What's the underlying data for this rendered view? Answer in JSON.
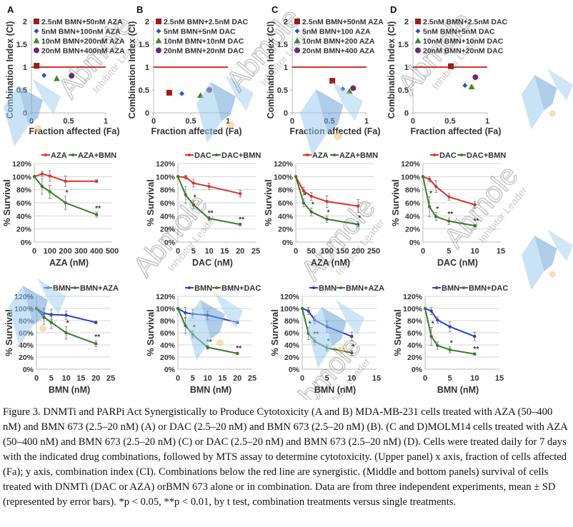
{
  "chart_data": [
    {
      "panel": "A",
      "row": "top",
      "type": "scatter",
      "title": "",
      "xlabel": "Fraction affected (Fa)",
      "ylabel": "Combination Index (CI)",
      "xlim": [
        0,
        1
      ],
      "ylim": [
        0,
        2
      ],
      "xticks": [
        "0",
        "0.5",
        "1"
      ],
      "yticks": [
        "0",
        "0.5",
        "1",
        "1.5",
        "2"
      ],
      "reference_line": {
        "y": 1,
        "color": "#d9342b"
      },
      "legend_position": "top",
      "series": [
        {
          "name": "2.5nM BMN+50nM AZA",
          "marker": "square",
          "color": "#9b1b1b",
          "x": 0.07,
          "y": 1.03
        },
        {
          "name": "5nM BMN+100nM AZA",
          "marker": "diamond",
          "color": "#2a4fd0",
          "x": 0.17,
          "y": 0.82
        },
        {
          "name": "10nM BMN+200nM AZA",
          "marker": "triangle",
          "color": "#3a8a2a",
          "x": 0.34,
          "y": 0.75
        },
        {
          "name": "20nM BMN+400nM AZA",
          "marker": "circle",
          "color": "#6b2a6b",
          "x": 0.54,
          "y": 0.81
        }
      ]
    },
    {
      "panel": "B",
      "row": "top",
      "type": "scatter",
      "title": "",
      "xlabel": "Fraction affected (Fa)",
      "ylabel": "Combination Index (CI)",
      "xlim": [
        0,
        1
      ],
      "ylim": [
        0,
        2
      ],
      "xticks": [
        "0",
        "0.5",
        "1"
      ],
      "yticks": [
        "0",
        "0.5",
        "1",
        "1.5",
        "2"
      ],
      "reference_line": {
        "y": 1,
        "color": "#d9342b"
      },
      "legend_position": "top",
      "series": [
        {
          "name": "2.5nM BMN+2.5nM DAC",
          "marker": "square",
          "color": "#9b1b1b",
          "x": 0.21,
          "y": 0.44
        },
        {
          "name": "5nM BMN+5nM DAC",
          "marker": "diamond",
          "color": "#2a4fd0",
          "x": 0.38,
          "y": 0.42
        },
        {
          "name": "10nM BMN+10nM DAC",
          "marker": "triangle",
          "color": "#3a8a2a",
          "x": 0.63,
          "y": 0.38
        },
        {
          "name": "20nM BMN+20nM DAC",
          "marker": "circle",
          "color": "#6b2a6b",
          "x": 0.75,
          "y": 0.5
        }
      ]
    },
    {
      "panel": "C",
      "row": "top",
      "type": "scatter",
      "title": "",
      "xlabel": "Fraction affected (Fa)",
      "ylabel": "Combination Index (CI)",
      "xlim": [
        0,
        1
      ],
      "ylim": [
        0,
        2
      ],
      "xticks": [
        "0",
        "0.5",
        "1"
      ],
      "yticks": [
        "0",
        "0.5",
        "1",
        "1.5",
        "2"
      ],
      "reference_line": {
        "y": 1,
        "color": "#d9342b"
      },
      "legend_position": "top",
      "series": [
        {
          "name": "2.5nM BMN+50nM AZA",
          "marker": "square",
          "color": "#9b1b1b",
          "x": 0.54,
          "y": 0.7
        },
        {
          "name": "5nM BMN+100 AZA",
          "marker": "diamond",
          "color": "#2a4fd0",
          "x": 0.68,
          "y": 0.52
        },
        {
          "name": "10nM BMN+200 AZA",
          "marker": "triangle",
          "color": "#3a8a2a",
          "x": 0.77,
          "y": 0.47
        },
        {
          "name": "20nM BMN+400 AZA",
          "marker": "circle",
          "color": "#6b2a6b",
          "x": 0.82,
          "y": 0.54
        }
      ]
    },
    {
      "panel": "D",
      "row": "top",
      "type": "scatter",
      "title": "",
      "xlabel": "Fraction affected (Fa)",
      "ylabel": "Combination Index (CI)",
      "xlim": [
        0,
        1
      ],
      "ylim": [
        0,
        2
      ],
      "xticks": [
        "0",
        "0.5",
        "1"
      ],
      "yticks": [
        "0",
        "0.5",
        "1",
        "1.5",
        "2"
      ],
      "reference_line": {
        "y": 1,
        "color": "#d9342b"
      },
      "legend_position": "top",
      "series": [
        {
          "name": "2.5nM BMN+2.5nM DAC",
          "marker": "square",
          "color": "#9b1b1b",
          "x": 0.51,
          "y": 1.02
        },
        {
          "name": "5nM BMN+5nM DAC",
          "marker": "diamond",
          "color": "#2a4fd0",
          "x": 0.7,
          "y": 0.6
        },
        {
          "name": "10nM BMN+10nM DAC",
          "marker": "triangle",
          "color": "#3a8a2a",
          "x": 0.79,
          "y": 0.57
        },
        {
          "name": "20nM BMN+20nM DAC",
          "marker": "circle",
          "color": "#6b2a6b",
          "x": 0.84,
          "y": 0.78
        }
      ]
    },
    {
      "panel": "A",
      "row": "middle",
      "type": "line",
      "title": "",
      "xlabel": "AZA (nM)",
      "ylabel": "% Survival",
      "xlim": [
        0,
        500
      ],
      "ylim": [
        0,
        120
      ],
      "grid": true,
      "legend_position": "top",
      "xticks": [
        "0",
        "100",
        "200",
        "300",
        "400",
        "500"
      ],
      "yticks": [
        "0%",
        "20%",
        "40%",
        "60%",
        "80%",
        "100%",
        "120%"
      ],
      "series": [
        {
          "name": "AZA",
          "color": "#d9342b",
          "x": [
            0,
            50,
            100,
            200,
            400
          ],
          "y": [
            100,
            104,
            101,
            93,
            93
          ],
          "err": [
            0,
            4,
            8,
            8,
            2
          ],
          "sig": [
            "",
            "",
            "",
            "",
            ""
          ]
        },
        {
          "name": "AZA+BMN",
          "color": "#3a7d2a",
          "x": [
            0,
            50,
            100,
            200,
            400
          ],
          "y": [
            100,
            85,
            77,
            60,
            42
          ],
          "err": [
            0,
            12,
            10,
            10,
            4
          ],
          "sig": [
            "",
            "",
            "",
            "*",
            "**"
          ]
        }
      ]
    },
    {
      "panel": "B",
      "row": "middle",
      "type": "line",
      "title": "",
      "xlabel": "DAC (nM)",
      "ylabel": "% Survival",
      "xlim": [
        0,
        25
      ],
      "ylim": [
        0,
        120
      ],
      "grid": true,
      "legend_position": "top",
      "xticks": [
        "0",
        "5",
        "10",
        "15",
        "20",
        "25"
      ],
      "yticks": [
        "0%",
        "20%",
        "40%",
        "60%",
        "80%",
        "100%",
        "120%"
      ],
      "series": [
        {
          "name": "DAC",
          "color": "#d9342b",
          "x": [
            0,
            2.5,
            5,
            10,
            20
          ],
          "y": [
            100,
            99,
            90,
            85,
            74
          ],
          "err": [
            0,
            3,
            6,
            5,
            5
          ],
          "sig": [
            "",
            "",
            "",
            "",
            ""
          ]
        },
        {
          "name": "DAC+BMN",
          "color": "#3a7d2a",
          "x": [
            0,
            2.5,
            5,
            10,
            20
          ],
          "y": [
            100,
            72,
            57,
            36,
            27
          ],
          "err": [
            0,
            13,
            6,
            3,
            2
          ],
          "sig": [
            "",
            "",
            "*",
            "**",
            "**"
          ]
        }
      ]
    },
    {
      "panel": "C",
      "row": "middle",
      "type": "line",
      "title": "",
      "xlabel": "AZA (nM)",
      "ylabel": "% Survival",
      "xlim": [
        0,
        250
      ],
      "ylim": [
        0,
        120
      ],
      "grid": true,
      "legend_position": "top",
      "xticks": [
        "0",
        "50",
        "100",
        "150",
        "200",
        "250"
      ],
      "yticks": [
        "0%",
        "20%",
        "40%",
        "60%",
        "80%",
        "100%",
        "120%"
      ],
      "series": [
        {
          "name": "AZA",
          "color": "#d9342b",
          "x": [
            0,
            25,
            50,
            100,
            200
          ],
          "y": [
            100,
            78,
            70,
            62,
            55
          ],
          "err": [
            0,
            6,
            6,
            9,
            10
          ],
          "sig": [
            "",
            "",
            "",
            "",
            ""
          ]
        },
        {
          "name": "AZA+BMN",
          "color": "#3a7d2a",
          "x": [
            0,
            25,
            50,
            100,
            200
          ],
          "y": [
            100,
            60,
            46,
            35,
            27
          ],
          "err": [
            0,
            6,
            6,
            5,
            4
          ],
          "sig": [
            "",
            "*",
            "*",
            "*",
            "*"
          ]
        }
      ]
    },
    {
      "panel": "D",
      "row": "middle",
      "type": "line",
      "title": "",
      "xlabel": "DAC (nM)",
      "ylabel": "% Survival",
      "xlim": [
        0,
        15
      ],
      "ylim": [
        0,
        120
      ],
      "grid": true,
      "legend_position": "top",
      "xticks": [
        "0",
        "5",
        "10",
        "15"
      ],
      "yticks": [
        "0%",
        "20%",
        "40%",
        "60%",
        "80%",
        "100%",
        "120%"
      ],
      "series": [
        {
          "name": "DAC",
          "color": "#d9342b",
          "x": [
            0,
            1.25,
            2.5,
            5,
            10
          ],
          "y": [
            100,
            96,
            85,
            69,
            57
          ],
          "err": [
            0,
            4,
            9,
            5,
            5
          ],
          "sig": [
            "",
            "",
            "",
            "",
            ""
          ]
        },
        {
          "name": "DAC+BMN",
          "color": "#3a7d2a",
          "x": [
            0,
            1.25,
            2.5,
            5,
            10
          ],
          "y": [
            100,
            54,
            39,
            32,
            25
          ],
          "err": [
            0,
            15,
            6,
            5,
            2
          ],
          "sig": [
            "",
            "*",
            "*",
            "**",
            "**"
          ]
        }
      ]
    },
    {
      "panel": "A",
      "row": "bottom",
      "type": "line",
      "title": "",
      "xlabel": "BMN (nM)",
      "ylabel": "% Survival",
      "xlim": [
        0,
        25
      ],
      "ylim": [
        0,
        120
      ],
      "grid": true,
      "legend_position": "top",
      "xticks": [
        "0",
        "5",
        "10",
        "15",
        "20",
        "25"
      ],
      "yticks": [
        "0%",
        "20%",
        "40%",
        "60%",
        "80%",
        "100%",
        "120%"
      ],
      "series": [
        {
          "name": "BMN",
          "color": "#2a3fd0",
          "x": [
            0,
            2.5,
            5,
            10,
            20
          ],
          "y": [
            100,
            92,
            90,
            89,
            77
          ],
          "err": [
            0,
            9,
            8,
            7,
            2
          ],
          "sig": [
            "",
            "",
            "",
            "",
            ""
          ]
        },
        {
          "name": "BMN+AZA",
          "color": "#3a7d2a",
          "x": [
            0,
            2.5,
            5,
            10,
            20
          ],
          "y": [
            100,
            86,
            77,
            60,
            42
          ],
          "err": [
            0,
            12,
            10,
            10,
            5
          ],
          "sig": [
            "",
            "",
            "",
            "*",
            "**"
          ]
        }
      ]
    },
    {
      "panel": "B",
      "row": "bottom",
      "type": "line",
      "title": "",
      "xlabel": "BMN (nM)",
      "ylabel": "% Survival",
      "xlim": [
        0,
        25
      ],
      "ylim": [
        0,
        120
      ],
      "grid": true,
      "legend_position": "top",
      "xticks": [
        "0",
        "5",
        "10",
        "15",
        "20",
        "25"
      ],
      "yticks": [
        "0%",
        "20%",
        "40%",
        "60%",
        "80%",
        "100%",
        "120%"
      ],
      "series": [
        {
          "name": "BMN",
          "color": "#2a3fd0",
          "x": [
            0,
            2.5,
            5,
            10,
            20
          ],
          "y": [
            100,
            93,
            91,
            89,
            77
          ],
          "err": [
            0,
            9,
            7,
            7,
            2
          ],
          "sig": [
            "",
            "",
            "",
            "",
            ""
          ]
        },
        {
          "name": "BMN+DAC",
          "color": "#3a7d2a",
          "x": [
            0,
            2.5,
            5,
            10,
            20
          ],
          "y": [
            100,
            72,
            57,
            36,
            26
          ],
          "err": [
            0,
            13,
            6,
            3,
            2
          ],
          "sig": [
            "",
            "",
            "*",
            "**",
            "**"
          ]
        }
      ]
    },
    {
      "panel": "C",
      "row": "bottom",
      "type": "line",
      "title": "",
      "xlabel": "BMN (nM)",
      "ylabel": "% Survival",
      "xlim": [
        0,
        15
      ],
      "ylim": [
        0,
        120
      ],
      "grid": true,
      "legend_position": "top",
      "xticks": [
        "0",
        "5",
        "10",
        "15"
      ],
      "yticks": [
        "0%",
        "20%",
        "40%",
        "60%",
        "80%",
        "100%",
        "120%"
      ],
      "series": [
        {
          "name": "BMN",
          "color": "#2a3fd0",
          "x": [
            0,
            1.25,
            2.5,
            5,
            10
          ],
          "y": [
            100,
            96,
            81,
            70,
            54
          ],
          "err": [
            0,
            6,
            6,
            9,
            7
          ],
          "sig": [
            "",
            "",
            "",
            "",
            ""
          ]
        },
        {
          "name": "BMN+AZA",
          "color": "#3a7d2a",
          "x": [
            0,
            1.25,
            2.5,
            5,
            10
          ],
          "y": [
            100,
            59,
            46,
            35,
            27
          ],
          "err": [
            0,
            10,
            6,
            5,
            4
          ],
          "sig": [
            "",
            "*",
            "**",
            "*",
            "*"
          ]
        }
      ]
    },
    {
      "panel": "D",
      "row": "bottom",
      "type": "line",
      "title": "",
      "xlabel": "BMN (nM)",
      "ylabel": "% Survival",
      "xlim": [
        0,
        15
      ],
      "ylim": [
        0,
        120
      ],
      "grid": true,
      "legend_position": "top",
      "xticks": [
        "0",
        "5",
        "10",
        "15"
      ],
      "yticks": [
        "0%",
        "20%",
        "40%",
        "60%",
        "80%",
        "100%",
        "120%"
      ],
      "series": [
        {
          "name": "BMN",
          "color": "#2a3fd0",
          "x": [
            0,
            1.25,
            2.5,
            5,
            10
          ],
          "y": [
            100,
            96,
            81,
            70,
            54
          ],
          "err": [
            0,
            6,
            5,
            8,
            7
          ],
          "sig": [
            "",
            "",
            "",
            "",
            ""
          ]
        },
        {
          "name": "BMN+DAC",
          "color": "#3a7d2a",
          "x": [
            0,
            1.25,
            2.5,
            5,
            10
          ],
          "y": [
            100,
            54,
            39,
            32,
            25
          ],
          "err": [
            0,
            15,
            6,
            5,
            2
          ],
          "sig": [
            "",
            "*",
            "",
            "*",
            "**"
          ]
        }
      ]
    }
  ],
  "panel_labels": [
    "A",
    "B",
    "C",
    "D"
  ],
  "watermark": {
    "brand": "Abmole",
    "tagline": "Inhibitor Leader"
  },
  "caption": "Figure 3. DNMTi and PARPi Act Synergistically to Produce Cytotoxicity (A and B) MDA-MB-231 cells treated with AZA (50–400 nM) and BMN 673 (2.5–20 nM) (A) or DAC (2.5–20 nM) and BMN 673 (2.5–20 nM) (B). (C and D)MOLM14 cells treated with AZA (50–400 nM) and BMN 673 (2.5–20 nM) (C) or DAC (2.5–20 nM) and BMN 673 (2.5–20 nM) (D). Cells were treated daily for 7 days with the indicated drug combinations, followed by MTS assay to determine cytotoxicity. (Upper panel) x axis, fraction of cells affected (Fa); y axis, combination index (CI). Combinations below the red line are synergistic. (Middle and bottom panels) survival of cells treated with DNMTi (DAC or AZA) orBMN 673 alone or in combination. Data are from three independent experiments, mean ± SD (represented by error bars). *p < 0.05, **p < 0.01, by t test, combination treatments versus single treatments."
}
